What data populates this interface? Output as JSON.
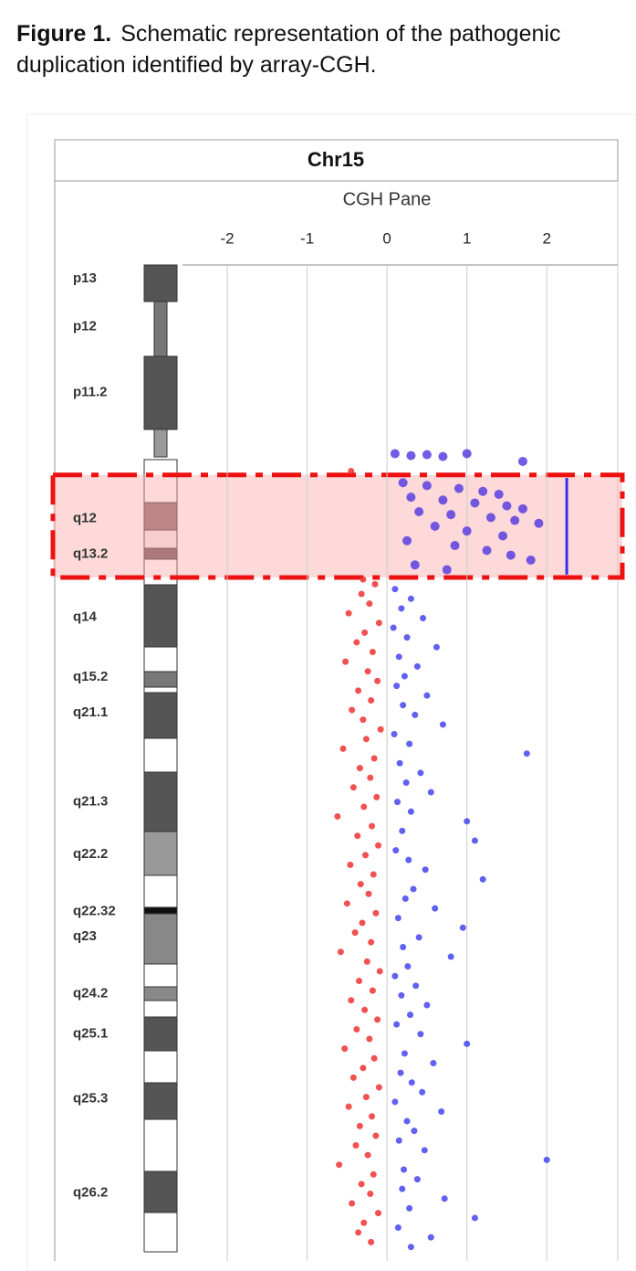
{
  "caption": {
    "label": "Figure 1.",
    "text": "Schematic representation of the pathogenic duplication identified by array-CGH."
  },
  "chart_data": {
    "type": "scatter",
    "title": "Chr15",
    "subtitle": "CGH Pane",
    "xlim": [
      -4.16,
      2.98
    ],
    "xticks": [
      -2,
      -1,
      0,
      1,
      2
    ],
    "grid": true,
    "ylim": [
      0,
      102
    ],
    "yticks": [
      {
        "value": 1.4,
        "label": "p13"
      },
      {
        "value": 6.4,
        "label": "p12"
      },
      {
        "value": 13.2,
        "label": "p11.2"
      },
      {
        "value": 26.2,
        "label": "q12"
      },
      {
        "value": 29.9,
        "label": "q13.2"
      },
      {
        "value": 36.4,
        "label": "q14"
      },
      {
        "value": 42.6,
        "label": "q15.2"
      },
      {
        "value": 46.3,
        "label": "q21.1"
      },
      {
        "value": 55.5,
        "label": "q21.3"
      },
      {
        "value": 60.9,
        "label": "q22.2"
      },
      {
        "value": 66.8,
        "label": "q22.32"
      },
      {
        "value": 69.4,
        "label": "q23"
      },
      {
        "value": 75.3,
        "label": "q24.2"
      },
      {
        "value": 79.5,
        "label": "q25.1"
      },
      {
        "value": 86.2,
        "label": "q25.3"
      },
      {
        "value": 95.9,
        "label": "q26.2"
      }
    ],
    "highlight": [
      21.7,
      32.3
    ],
    "segment": {
      "x": 2.25,
      "start": 22.0,
      "end": 32.0,
      "color": "#3333ee"
    },
    "series": [
      {
        "color": "#ee3333",
        "x": [
          -0.15,
          -0.32,
          -0.22,
          -0.48,
          -0.1,
          -0.28,
          -0.38,
          -0.18,
          -0.52,
          -0.24,
          -0.12,
          -0.36,
          -0.2,
          -0.44,
          -0.3,
          -0.08,
          -0.26,
          -0.55,
          -0.16,
          -0.34,
          -0.21,
          -0.42,
          -0.13,
          -0.29,
          -0.62,
          -0.19,
          -0.37,
          -0.11,
          -0.27,
          -0.46,
          -0.17,
          -0.33,
          -0.23,
          -0.5,
          -0.14,
          -0.31,
          -0.4,
          -0.2,
          -0.58,
          -0.25,
          -0.09,
          -0.35,
          -0.18,
          -0.45,
          -0.28,
          -0.12,
          -0.38,
          -0.22,
          -0.53,
          -0.16,
          -0.3,
          -0.42,
          -0.1,
          -0.26,
          -0.48,
          -0.19,
          -0.34,
          -0.14,
          -0.39,
          -0.24,
          -0.6,
          -0.17,
          -0.32,
          -0.21,
          -0.44,
          -0.11,
          -0.29,
          -0.36,
          -0.2,
          -0.45,
          -0.3
        ],
        "y": [
          33,
          34,
          35,
          36,
          37,
          38,
          39,
          40,
          41,
          42,
          43,
          44,
          45,
          46,
          47,
          48,
          49,
          50,
          51,
          52,
          53,
          54,
          55,
          56,
          57,
          58,
          59,
          60,
          61,
          62,
          63,
          64,
          65,
          66,
          67,
          68,
          69,
          70,
          71,
          72,
          73,
          74,
          75,
          76,
          77,
          78,
          79,
          80,
          81,
          82,
          83,
          84,
          85,
          86,
          87,
          88,
          89,
          90,
          91,
          92,
          93,
          94,
          95,
          96,
          97,
          98,
          99,
          100,
          101,
          21.3,
          32.5
        ]
      },
      {
        "color": "#4444ee",
        "x": [
          0.1,
          0.3,
          0.18,
          0.45,
          0.08,
          0.25,
          0.62,
          0.15,
          0.38,
          0.22,
          0.12,
          0.5,
          0.2,
          0.35,
          0.7,
          0.09,
          0.28,
          1.75,
          0.16,
          0.42,
          0.24,
          0.55,
          0.13,
          0.3,
          1.0,
          0.19,
          1.1,
          0.11,
          0.27,
          0.48,
          1.2,
          0.33,
          0.23,
          0.6,
          0.14,
          0.95,
          0.4,
          0.2,
          0.8,
          0.26,
          0.1,
          0.36,
          0.18,
          0.5,
          0.29,
          0.12,
          0.42,
          1.0,
          0.22,
          0.58,
          0.17,
          0.31,
          0.44,
          0.1,
          0.68,
          0.25,
          0.34,
          0.15,
          0.47,
          2.0,
          0.21,
          0.38,
          0.19,
          0.72,
          0.28,
          1.1,
          0.14,
          0.55,
          0.3
        ],
        "y": [
          33.5,
          34.5,
          35.5,
          36.5,
          37.5,
          38.5,
          39.5,
          40.5,
          41.5,
          42.5,
          43.5,
          44.5,
          45.5,
          46.5,
          47.5,
          48.5,
          49.5,
          50.5,
          51.5,
          52.5,
          53.5,
          54.5,
          55.5,
          56.5,
          57.5,
          58.5,
          59.5,
          60.5,
          61.5,
          62.5,
          63.5,
          64.5,
          65.5,
          66.5,
          67.5,
          68.5,
          69.5,
          70.5,
          71.5,
          72.5,
          73.5,
          74.5,
          75.5,
          76.5,
          77.5,
          78.5,
          79.5,
          80.5,
          81.5,
          82.5,
          83.5,
          84.5,
          85.5,
          86.5,
          87.5,
          88.5,
          89.5,
          90.5,
          91.5,
          92.5,
          93.5,
          94.5,
          95.5,
          96.5,
          97.5,
          98.5,
          99.5,
          100.5,
          101.5
        ]
      },
      {
        "color": "#5a3ee0",
        "x": [
          0.2,
          0.5,
          0.9,
          1.2,
          1.4,
          0.3,
          0.7,
          1.1,
          1.5,
          1.7,
          0.4,
          0.8,
          1.3,
          1.6,
          1.9,
          0.6,
          1.0,
          1.45,
          0.25,
          0.85,
          1.25,
          1.55,
          1.8,
          0.35,
          0.75,
          0.1,
          0.3,
          0.5,
          0.7,
          1.0,
          1.7
        ],
        "y": [
          22.5,
          22.8,
          23.1,
          23.4,
          23.7,
          24.0,
          24.3,
          24.6,
          24.9,
          25.2,
          25.5,
          25.8,
          26.1,
          26.4,
          26.7,
          27.0,
          27.5,
          28.0,
          28.5,
          29.0,
          29.5,
          30.0,
          30.5,
          31.0,
          31.5,
          19.5,
          19.7,
          19.6,
          19.8,
          19.5,
          20.3
        ]
      }
    ]
  }
}
